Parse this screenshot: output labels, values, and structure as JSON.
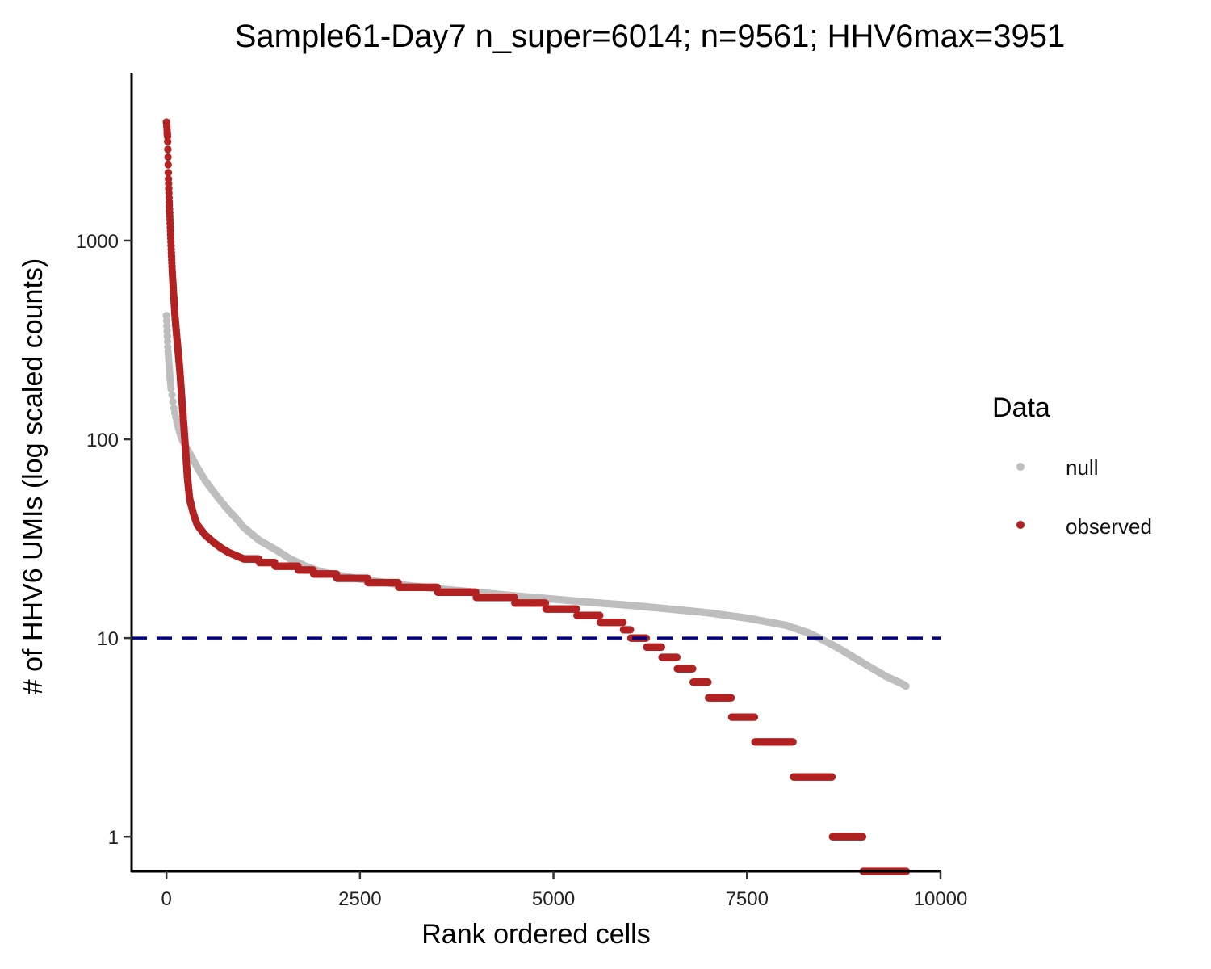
{
  "chart_data": {
    "type": "scatter",
    "title": "Sample61-Day7 n_super=6014; n=9561; HHV6max=3951",
    "xlabel": "Rank ordered cells",
    "ylabel": "# of HHV6 UMIs (log scaled counts)",
    "x_scale": "linear",
    "y_scale": "log10",
    "xlim": [
      -450,
      10000
    ],
    "ylim": [
      0.67,
      7000
    ],
    "x_ticks": [
      0,
      2500,
      5000,
      7500,
      10000
    ],
    "x_tick_labels": [
      "0",
      "2500",
      "5000",
      "7500",
      "10000"
    ],
    "y_ticks": [
      1,
      10,
      100,
      1000
    ],
    "y_tick_labels": [
      "1",
      "10",
      "100",
      "1000"
    ],
    "grid": false,
    "legend": {
      "title": "Data",
      "position": "right"
    },
    "reference_line": {
      "axis": "y",
      "value": 10,
      "style": "dashed",
      "color": "#000080"
    },
    "series": [
      {
        "name": "null",
        "color": "#bebebe",
        "points": [
          [
            0,
            420
          ],
          [
            20,
            280
          ],
          [
            40,
            220
          ],
          [
            60,
            180
          ],
          [
            100,
            140
          ],
          [
            150,
            115
          ],
          [
            200,
            100
          ],
          [
            300,
            85
          ],
          [
            400,
            72
          ],
          [
            500,
            62
          ],
          [
            600,
            55
          ],
          [
            700,
            49
          ],
          [
            800,
            44
          ],
          [
            900,
            40
          ],
          [
            1000,
            36
          ],
          [
            1200,
            31
          ],
          [
            1400,
            28
          ],
          [
            1600,
            25
          ],
          [
            1800,
            23
          ],
          [
            2000,
            21.5
          ],
          [
            2500,
            19.8
          ],
          [
            3000,
            18.6
          ],
          [
            3500,
            17.7
          ],
          [
            4000,
            17.0
          ],
          [
            4500,
            16.3
          ],
          [
            5000,
            15.7
          ],
          [
            5500,
            15.1
          ],
          [
            6000,
            14.6
          ],
          [
            6500,
            14.0
          ],
          [
            7000,
            13.4
          ],
          [
            7500,
            12.6
          ],
          [
            8000,
            11.6
          ],
          [
            8300,
            10.6
          ],
          [
            8500,
            9.7
          ],
          [
            8700,
            8.8
          ],
          [
            8900,
            7.9
          ],
          [
            9100,
            7.1
          ],
          [
            9300,
            6.4
          ],
          [
            9500,
            5.9
          ],
          [
            9561,
            5.7
          ]
        ]
      },
      {
        "name": "observed",
        "color": "#b22222",
        "points": [
          [
            0,
            3951
          ],
          [
            5,
            3800
          ],
          [
            10,
            3500
          ],
          [
            15,
            3300
          ],
          [
            25,
            2100
          ],
          [
            35,
            1600
          ],
          [
            45,
            1300
          ],
          [
            55,
            1050
          ],
          [
            65,
            850
          ],
          [
            75,
            700
          ],
          [
            90,
            560
          ],
          [
            110,
            420
          ],
          [
            130,
            340
          ],
          [
            150,
            280
          ],
          [
            170,
            230
          ],
          [
            190,
            180
          ],
          [
            210,
            140
          ],
          [
            230,
            110
          ],
          [
            250,
            85
          ],
          [
            270,
            65
          ],
          [
            300,
            50
          ],
          [
            350,
            42
          ],
          [
            400,
            37
          ],
          [
            500,
            33
          ],
          [
            600,
            30.5
          ],
          [
            700,
            28.5
          ],
          [
            800,
            27
          ],
          [
            1000,
            25
          ],
          [
            1200,
            24
          ],
          [
            1400,
            23
          ],
          [
            1700,
            22
          ],
          [
            1900,
            21
          ],
          [
            2200,
            20
          ],
          [
            2600,
            19
          ],
          [
            3000,
            18
          ],
          [
            3500,
            17
          ],
          [
            4000,
            16
          ],
          [
            4500,
            15
          ],
          [
            4900,
            14
          ],
          [
            5300,
            13
          ],
          [
            5600,
            12
          ],
          [
            5900,
            11
          ],
          [
            6000,
            10
          ],
          [
            6200,
            9
          ],
          [
            6400,
            8
          ],
          [
            6600,
            7
          ],
          [
            6800,
            6
          ],
          [
            7000,
            5
          ],
          [
            7300,
            4
          ],
          [
            7600,
            3
          ],
          [
            8100,
            2
          ],
          [
            8600,
            1
          ],
          [
            9000,
            0.67
          ],
          [
            9561,
            0.67
          ]
        ]
      }
    ]
  }
}
